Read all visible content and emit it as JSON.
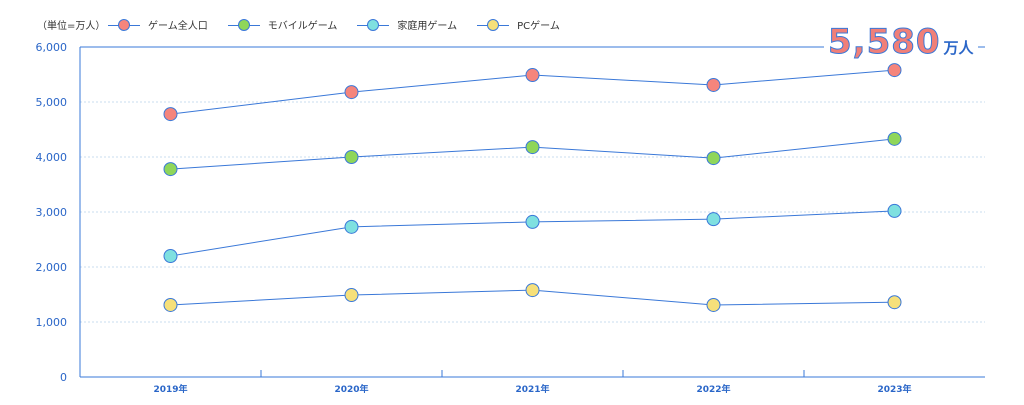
{
  "chart_data": {
    "type": "line",
    "unit_label": "（単位=万人）",
    "categories": [
      "2019年",
      "2020年",
      "2021年",
      "2022年",
      "2023年"
    ],
    "ylim": [
      0,
      6000
    ],
    "yticks": [
      "0",
      "1,000",
      "2,000",
      "3,000",
      "4,000",
      "5,000",
      "6,000"
    ],
    "grid": true,
    "legend_position": "top-left",
    "series": [
      {
        "name": "ゲーム全人口",
        "color": "#f5857c",
        "values": [
          4780,
          5180,
          5490,
          5310,
          5580
        ]
      },
      {
        "name": "モバイルゲーム",
        "color": "#8fd65a",
        "values": [
          3780,
          4000,
          4180,
          3980,
          4330
        ]
      },
      {
        "name": "家庭用ゲーム",
        "color": "#7fe0e0",
        "values": [
          2200,
          2730,
          2820,
          2870,
          3020
        ]
      },
      {
        "name": "PCゲーム",
        "color": "#f6e07a",
        "values": [
          1310,
          1490,
          1580,
          1310,
          1360
        ]
      }
    ],
    "annotation": {
      "value": "5,580",
      "unit": "万人"
    },
    "line_color": "#3a78d8"
  }
}
